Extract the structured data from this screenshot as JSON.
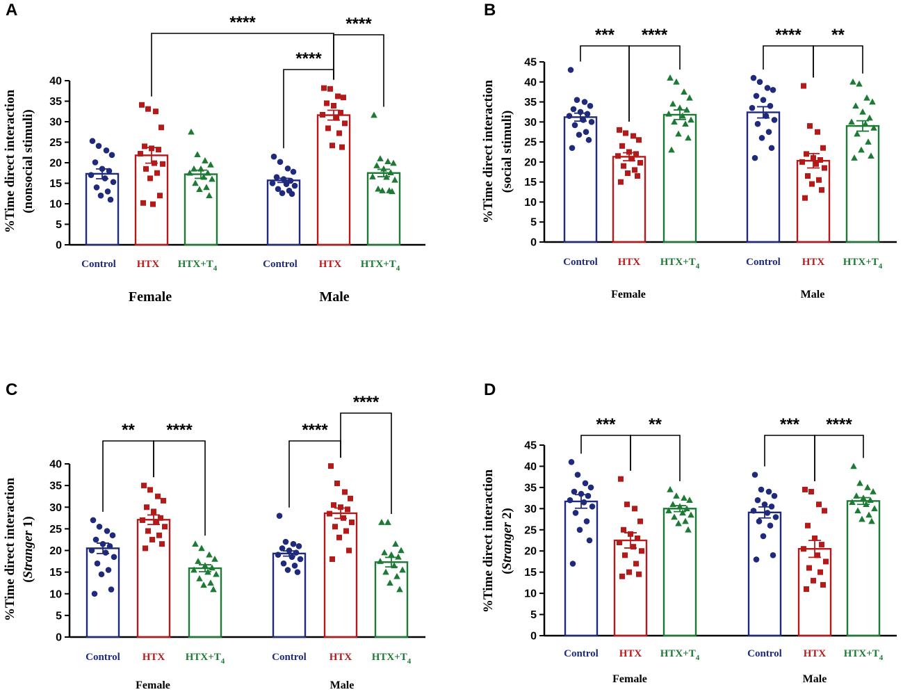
{
  "colors": {
    "control": "#1f2a7a",
    "htx": "#b31b1b",
    "htx_t4": "#1d7a35"
  },
  "chart_data": [
    {
      "panel": "A",
      "type": "bar",
      "ylabel_line1": "%Time direct interaction",
      "ylabel_line2": "(nonsocial stimuli)",
      "ylabel_italic": false,
      "ylim": [
        0,
        40
      ],
      "yticks": [
        "0",
        "5",
        "10",
        "15",
        "20",
        "25",
        "30",
        "35",
        "40"
      ],
      "groups": [
        {
          "name": "Female",
          "bars": [
            {
              "label": "Control",
              "key": "control",
              "mean": 17.3,
              "sem": 1.2,
              "points": [
                25.3,
                24.1,
                23.0,
                21.9,
                20.1,
                18.5,
                18.0,
                17.0,
                16.2,
                15.3,
                14.0,
                13.0,
                12.0,
                11.0
              ]
            },
            {
              "label": "HTX",
              "key": "htx",
              "mean": 21.8,
              "sem": 1.9,
              "points": [
                34.1,
                33.1,
                32.5,
                28.6,
                24.0,
                23.5,
                23.2,
                22.2,
                19.9,
                19.7,
                18.5,
                17.5,
                16.2,
                12.0,
                10.2,
                9.9
              ]
            },
            {
              "label": "HTX+T4",
              "key": "htx_t4",
              "mean": 17.2,
              "sem": 1.0,
              "points": [
                27.5,
                22.0,
                20.5,
                19.5,
                18.5,
                18.5,
                17.5,
                17.5,
                16.5,
                16.0,
                15.0,
                14.0,
                13.5,
                12.0
              ]
            }
          ]
        },
        {
          "name": "Male",
          "bars": [
            {
              "label": "Control",
              "key": "control",
              "mean": 15.7,
              "sem": 0.5,
              "points": [
                21.5,
                20.2,
                18.6,
                17.8,
                16.5,
                16.0,
                15.6,
                15.0,
                14.8,
                14.4,
                13.6,
                13.2,
                12.6,
                12.4
              ]
            },
            {
              "label": "HTX",
              "key": "htx",
              "mean": 31.6,
              "sem": 1.2,
              "points": [
                38.2,
                38.0,
                36.2,
                35.9,
                34.5,
                33.9,
                32.2,
                31.7,
                30.9,
                29.6,
                28.4,
                27.2,
                24.2,
                23.8
              ]
            },
            {
              "label": "HTX+T4",
              "key": "htx_t4",
              "mean": 17.5,
              "sem": 0.9,
              "points": [
                31.6,
                21.0,
                20.3,
                19.9,
                19.3,
                18.5,
                17.6,
                16.6,
                16.5,
                15.8,
                13.6,
                13.2,
                13.2,
                13.0
              ]
            }
          ]
        }
      ],
      "comparisons": [
        {
          "from": [
            0,
            1
          ],
          "to": [
            1,
            1
          ],
          "stars": "****",
          "level": 3
        },
        {
          "from": [
            1,
            0
          ],
          "to": [
            1,
            1
          ],
          "stars": "****",
          "level": 1
        },
        {
          "from": [
            1,
            1
          ],
          "to": [
            1,
            2
          ],
          "stars": "****",
          "level": 2
        }
      ]
    },
    {
      "panel": "B",
      "type": "bar",
      "ylabel_line1": "%Time direct interaction",
      "ylabel_line2": "(social stimuli)",
      "ylabel_italic": false,
      "ylim": [
        0,
        45
      ],
      "yticks": [
        "0",
        "5",
        "10",
        "15",
        "20",
        "25",
        "30",
        "35",
        "40",
        "45"
      ],
      "groups": [
        {
          "name": "Female",
          "bars": [
            {
              "label": "Control",
              "key": "control",
              "mean": 31.2,
              "sem": 1.0,
              "points": [
                43.0,
                35.5,
                35.0,
                34.0,
                33.2,
                32.5,
                32.0,
                31.5,
                30.5,
                30.0,
                29.2,
                27.5,
                26.8,
                25.5,
                23.5
              ]
            },
            {
              "label": "HTX",
              "key": "htx",
              "mean": 21.3,
              "sem": 1.0,
              "points": [
                28.0,
                27.2,
                26.5,
                25.5,
                24.0,
                22.5,
                22.0,
                21.5,
                20.8,
                19.8,
                19.0,
                18.0,
                17.2,
                16.5,
                15.0
              ]
            },
            {
              "label": "HTX+T4",
              "key": "htx_t4",
              "mean": 31.8,
              "sem": 1.2,
              "points": [
                41.0,
                40.0,
                37.5,
                36.0,
                34.5,
                33.5,
                33.0,
                32.0,
                31.5,
                30.5,
                30.0,
                29.5,
                27.0,
                26.0,
                23.0
              ]
            }
          ]
        },
        {
          "name": "Male",
          "bars": [
            {
              "label": "Control",
              "key": "control",
              "mean": 32.4,
              "sem": 1.4,
              "points": [
                41.0,
                40.0,
                38.5,
                38.0,
                36.5,
                35.5,
                34.0,
                33.5,
                31.5,
                30.5,
                29.5,
                27.5,
                26.0,
                23.5,
                21.0
              ]
            },
            {
              "label": "HTX",
              "key": "htx",
              "mean": 20.3,
              "sem": 1.8,
              "points": [
                39.0,
                29.0,
                27.5,
                23.5,
                22.0,
                21.0,
                20.5,
                20.0,
                19.5,
                18.5,
                16.5,
                15.5,
                14.5,
                13.0,
                11.0
              ]
            },
            {
              "label": "HTX+T4",
              "key": "htx_t4",
              "mean": 29.0,
              "sem": 1.3,
              "points": [
                40.0,
                39.5,
                36.0,
                35.0,
                34.0,
                32.5,
                31.0,
                30.0,
                29.5,
                28.5,
                27.0,
                25.0,
                23.0,
                21.5,
                21.0
              ]
            }
          ]
        }
      ],
      "comparisons": [
        {
          "from": [
            0,
            0
          ],
          "to": [
            0,
            1
          ],
          "stars": "***",
          "level": 1
        },
        {
          "from": [
            0,
            1
          ],
          "to": [
            0,
            2
          ],
          "stars": "****",
          "level": 1
        },
        {
          "from": [
            1,
            0
          ],
          "to": [
            1,
            1
          ],
          "stars": "****",
          "level": 1
        },
        {
          "from": [
            1,
            1
          ],
          "to": [
            1,
            2
          ],
          "stars": "**",
          "level": 1
        }
      ]
    },
    {
      "panel": "C",
      "type": "bar",
      "ylabel_line1": "%Time direct interaction",
      "ylabel_line2": "(Stranger 1)",
      "ylabel_italic": true,
      "ylim": [
        0,
        40
      ],
      "yticks": [
        "0",
        "5",
        "10",
        "15",
        "20",
        "25",
        "30",
        "35",
        "40"
      ],
      "groups": [
        {
          "name": "Female",
          "bars": [
            {
              "label": "Control",
              "key": "control",
              "mean": 20.5,
              "sem": 1.2,
              "points": [
                27.0,
                25.5,
                24.5,
                23.5,
                22.5,
                21.5,
                21.0,
                20.0,
                19.5,
                18.5,
                17.0,
                15.5,
                14.5,
                11.0,
                10.0
              ]
            },
            {
              "label": "HTX",
              "key": "htx",
              "mean": 27.1,
              "sem": 1.1,
              "points": [
                35.0,
                34.0,
                32.5,
                31.5,
                30.0,
                29.0,
                27.5,
                27.0,
                26.5,
                25.5,
                24.5,
                23.5,
                22.5,
                21.5,
                20.5
              ]
            },
            {
              "label": "HTX+T4",
              "key": "htx_t4",
              "mean": 15.9,
              "sem": 0.8,
              "points": [
                21.5,
                20.5,
                19.0,
                18.0,
                17.5,
                16.5,
                16.0,
                15.5,
                15.0,
                14.5,
                13.5,
                12.5,
                12.0,
                11.0
              ]
            }
          ]
        },
        {
          "name": "Male",
          "bars": [
            {
              "label": "Control",
              "key": "control",
              "mean": 19.3,
              "sem": 0.6,
              "points": [
                28.0,
                22.0,
                21.5,
                21.0,
                20.5,
                20.0,
                19.5,
                19.0,
                18.5,
                18.0,
                17.0,
                16.5,
                15.5,
                15.0
              ]
            },
            {
              "label": "HTX",
              "key": "htx",
              "mean": 28.6,
              "sem": 1.2,
              "points": [
                39.5,
                35.5,
                33.5,
                32.0,
                30.5,
                30.0,
                29.5,
                28.5,
                27.5,
                26.5,
                25.5,
                24.5,
                23.0,
                20.0,
                18.0
              ]
            },
            {
              "label": "HTX+T4",
              "key": "htx_t4",
              "mean": 17.3,
              "sem": 1.1,
              "points": [
                26.5,
                26.5,
                21.5,
                20.0,
                19.5,
                19.0,
                18.5,
                17.5,
                16.5,
                15.5,
                15.0,
                14.0,
                12.5,
                11.0
              ]
            }
          ]
        }
      ],
      "comparisons": [
        {
          "from": [
            0,
            0
          ],
          "to": [
            0,
            1
          ],
          "stars": "**",
          "level": 1
        },
        {
          "from": [
            0,
            1
          ],
          "to": [
            0,
            2
          ],
          "stars": "****",
          "level": 1
        },
        {
          "from": [
            1,
            0
          ],
          "to": [
            1,
            1
          ],
          "stars": "****",
          "level": 1
        },
        {
          "from": [
            1,
            1
          ],
          "to": [
            1,
            2
          ],
          "stars": "****",
          "level": 2
        }
      ]
    },
    {
      "panel": "D",
      "type": "bar",
      "ylabel_line1": "%Time direct interaction",
      "ylabel_line2": "(Stranger 2)",
      "ylabel_italic": true,
      "ylim": [
        0,
        45
      ],
      "yticks": [
        "0",
        "5",
        "10",
        "15",
        "20",
        "25",
        "30",
        "35",
        "40",
        "45"
      ],
      "groups": [
        {
          "name": "Female",
          "bars": [
            {
              "label": "Control",
              "key": "control",
              "mean": 31.7,
              "sem": 1.6,
              "points": [
                41.0,
                38.0,
                36.0,
                35.0,
                34.0,
                33.5,
                33.0,
                32.0,
                31.5,
                30.5,
                29.0,
                27.0,
                25.0,
                22.5,
                17.0
              ]
            },
            {
              "label": "HTX",
              "key": "htx",
              "mean": 22.5,
              "sem": 1.8,
              "points": [
                37.0,
                31.0,
                30.0,
                27.0,
                25.0,
                24.0,
                23.0,
                22.0,
                21.0,
                20.0,
                19.0,
                17.0,
                15.0,
                14.5,
                14.0
              ]
            },
            {
              "label": "HTX+T4",
              "key": "htx_t4",
              "mean": 30.0,
              "sem": 0.7,
              "points": [
                34.5,
                33.0,
                32.5,
                32.0,
                31.0,
                30.5,
                30.0,
                29.5,
                29.0,
                28.5,
                28.0,
                27.0,
                26.5,
                25.0
              ]
            }
          ]
        },
        {
          "name": "Male",
          "bars": [
            {
              "label": "Control",
              "key": "control",
              "mean": 29.1,
              "sem": 1.3,
              "points": [
                38.0,
                34.5,
                34.0,
                33.0,
                32.0,
                31.0,
                30.5,
                29.5,
                29.0,
                28.0,
                27.0,
                26.0,
                23.5,
                19.0,
                18.0
              ]
            },
            {
              "label": "HTX",
              "key": "htx",
              "mean": 20.5,
              "sem": 2.0,
              "points": [
                34.5,
                34.0,
                31.0,
                29.5,
                26.0,
                23.0,
                21.5,
                20.5,
                19.0,
                17.5,
                16.0,
                15.0,
                13.0,
                12.0,
                11.0
              ]
            },
            {
              "label": "HTX+T4",
              "key": "htx_t4",
              "mean": 31.8,
              "sem": 0.8,
              "points": [
                40.0,
                36.0,
                35.0,
                34.0,
                33.0,
                32.5,
                32.0,
                31.5,
                31.0,
                30.0,
                29.5,
                28.5,
                27.5,
                27.0
              ]
            }
          ]
        }
      ],
      "comparisons": [
        {
          "from": [
            0,
            0
          ],
          "to": [
            0,
            1
          ],
          "stars": "***",
          "level": 1
        },
        {
          "from": [
            0,
            1
          ],
          "to": [
            0,
            2
          ],
          "stars": "**",
          "level": 1
        },
        {
          "from": [
            1,
            0
          ],
          "to": [
            1,
            1
          ],
          "stars": "***",
          "level": 1
        },
        {
          "from": [
            1,
            1
          ],
          "to": [
            1,
            2
          ],
          "stars": "****",
          "level": 1
        }
      ]
    }
  ]
}
